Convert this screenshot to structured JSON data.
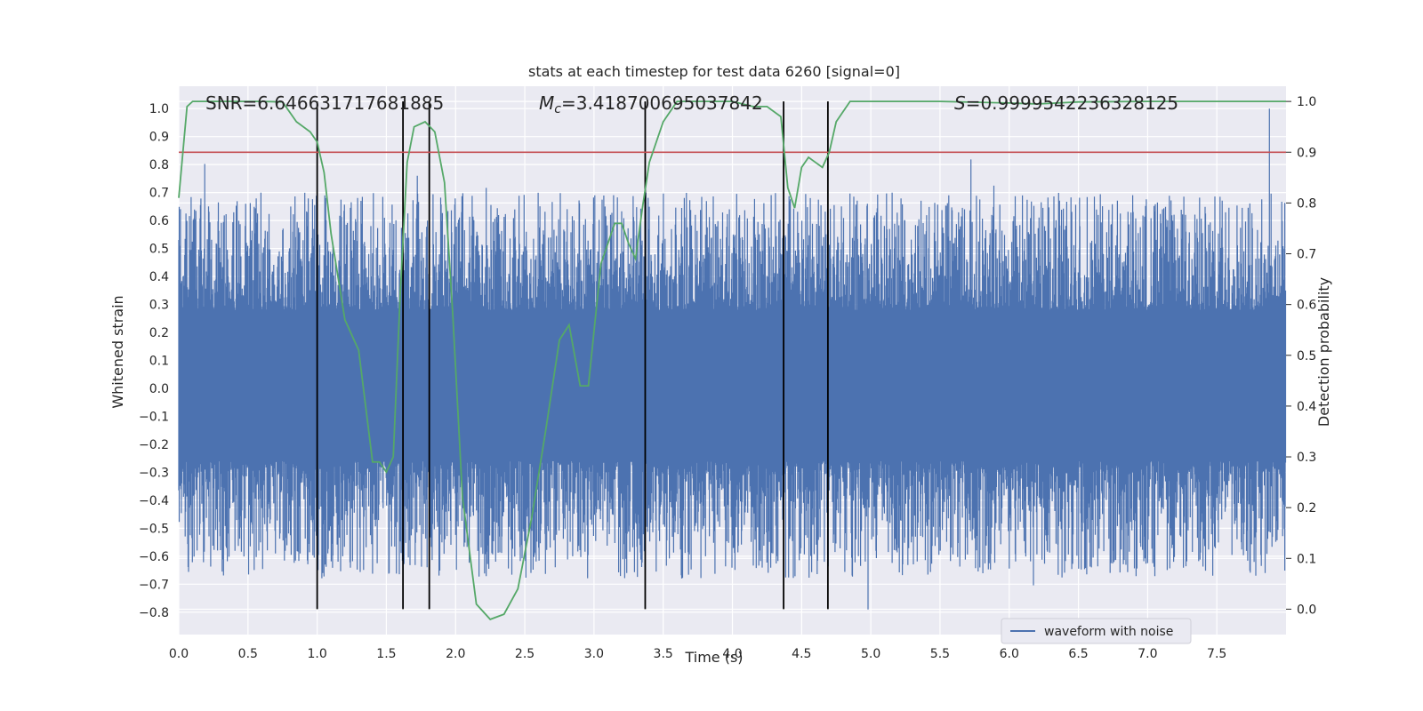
{
  "chart_data": {
    "type": "line",
    "title": "stats at each timestep for test data 6260 [signal=0]",
    "xlabel": "Time (s)",
    "ylabel_left": "Whitened strain",
    "ylabel_right": "Detection probability",
    "xlim": [
      0.0,
      8.0
    ],
    "ylim_left": [
      -0.88,
      1.08
    ],
    "ylim_right": [
      -0.05,
      1.03
    ],
    "x_ticks": [
      0.0,
      0.5,
      1.0,
      1.5,
      2.0,
      2.5,
      3.0,
      3.5,
      4.0,
      4.5,
      5.0,
      5.5,
      6.0,
      6.5,
      7.0,
      7.5
    ],
    "y_ticks_left": [
      -0.8,
      -0.7,
      -0.6,
      -0.5,
      -0.4,
      -0.3,
      -0.2,
      -0.1,
      0.0,
      0.1,
      0.2,
      0.3,
      0.4,
      0.5,
      0.6,
      0.7,
      0.8,
      0.9,
      1.0
    ],
    "y_ticks_right": [
      0.0,
      0.1,
      0.2,
      0.3,
      0.4,
      0.5,
      0.6,
      0.7,
      0.8,
      0.9,
      1.0
    ],
    "grid": true,
    "legend_placement": "lower-right",
    "annotations": {
      "snr": "SNR=6.646631717681885",
      "mc_symbol": "M",
      "mc_sub": "c",
      "mc_value": "=3.418700695037842",
      "s_symbol": "S",
      "s_value": "=0.9999542236328125"
    },
    "series": [
      {
        "name": "waveform with noise",
        "axis": "left",
        "color": "#4c72b0",
        "envelope_pos": 0.42,
        "envelope_neg": -0.42,
        "core_band": [
          -0.26,
          0.28
        ],
        "max_peak": {
          "x": 7.88,
          "y": 1.0
        },
        "min_peak": {
          "x": 4.98,
          "y": -0.79
        }
      },
      {
        "name": "",
        "axis": "right",
        "color": "#55a868",
        "x": [
          0.0,
          0.06,
          0.1,
          0.2,
          0.4,
          0.6,
          0.75,
          0.85,
          0.95,
          1.0,
          1.05,
          1.1,
          1.2,
          1.3,
          1.4,
          1.45,
          1.5,
          1.55,
          1.6,
          1.65,
          1.7,
          1.78,
          1.85,
          1.92,
          1.98,
          2.05,
          2.15,
          2.25,
          2.35,
          2.45,
          2.55,
          2.65,
          2.75,
          2.82,
          2.9,
          2.96,
          3.05,
          3.15,
          3.2,
          3.25,
          3.3,
          3.35,
          3.4,
          3.5,
          3.6,
          3.7,
          3.8,
          4.0,
          4.15,
          4.25,
          4.35,
          4.4,
          4.45,
          4.5,
          4.55,
          4.6,
          4.65,
          4.7,
          4.75,
          4.85,
          5.0,
          5.5,
          6.0,
          6.2,
          6.5,
          7.0,
          7.5,
          8.0
        ],
        "y": [
          0.81,
          0.99,
          1.0,
          1.0,
          1.0,
          1.0,
          0.999,
          0.96,
          0.94,
          0.92,
          0.86,
          0.74,
          0.57,
          0.51,
          0.29,
          0.29,
          0.27,
          0.3,
          0.62,
          0.88,
          0.95,
          0.96,
          0.94,
          0.84,
          0.58,
          0.22,
          0.01,
          -0.02,
          -0.01,
          0.04,
          0.18,
          0.35,
          0.53,
          0.56,
          0.44,
          0.44,
          0.68,
          0.76,
          0.76,
          0.72,
          0.69,
          0.79,
          0.88,
          0.96,
          1.0,
          1.0,
          1.0,
          1.0,
          0.99,
          0.99,
          0.97,
          0.83,
          0.79,
          0.87,
          0.89,
          0.88,
          0.87,
          0.9,
          0.96,
          1.0,
          1.0,
          1.0,
          0.997,
          0.995,
          0.999,
          1.0,
          1.0,
          1.0
        ]
      }
    ],
    "threshold_line": {
      "axis": "right",
      "y": 0.9,
      "color": "#c44e52"
    },
    "vertical_lines": [
      1.0,
      1.62,
      1.81,
      3.37,
      4.37,
      4.69
    ],
    "vertical_lines_range_right": [
      0.0,
      1.0
    ]
  }
}
